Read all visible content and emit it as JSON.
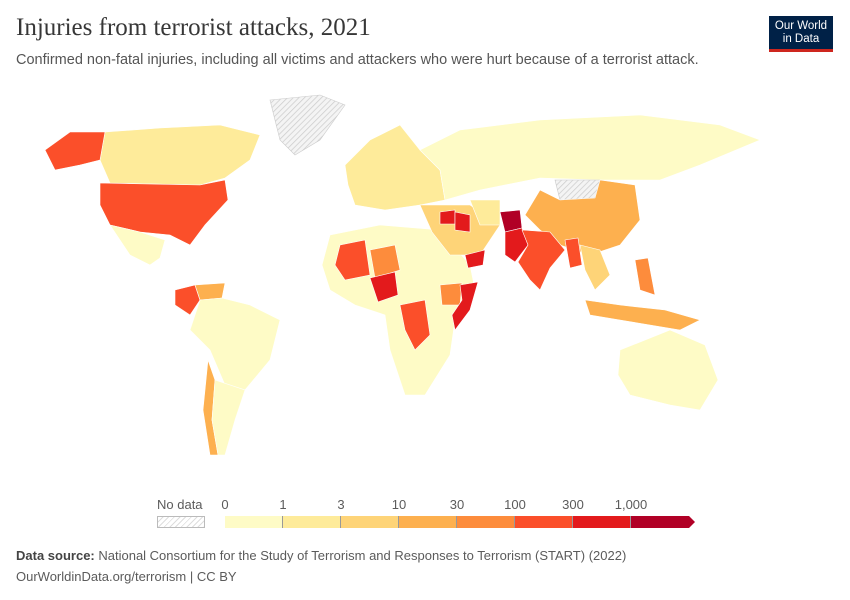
{
  "header": {
    "title": "Injuries from terrorist attacks, 2021",
    "subtitle": "Confirmed non-fatal injuries, including all victims and attackers who were hurt because of a terrorist attack.",
    "logo_text": "Our World in Data"
  },
  "legend": {
    "no_data_label": "No data",
    "ticks": [
      "0",
      "1",
      "3",
      "10",
      "30",
      "100",
      "300",
      "1,000"
    ],
    "colors": [
      "#fefbc6",
      "#feeb9a",
      "#fed478",
      "#fdb04f",
      "#fd8c3c",
      "#fb4f2a",
      "#e31a1c",
      "#b10026"
    ],
    "no_data_color": "#e8e8e8"
  },
  "chart_data": {
    "type": "choropleth",
    "title": "Injuries from terrorist attacks, 2021",
    "scale_bins": [
      "0",
      "1",
      "3",
      "10",
      "30",
      "100",
      "300",
      "1,000"
    ],
    "regions": [
      {
        "name": "United States",
        "bin": "100-300"
      },
      {
        "name": "Alaska (US)",
        "bin": "100-300"
      },
      {
        "name": "Canada",
        "bin": "1-3"
      },
      {
        "name": "Greenland",
        "bin": "no data"
      },
      {
        "name": "Mexico",
        "bin": "0-1"
      },
      {
        "name": "Colombia",
        "bin": "100-300"
      },
      {
        "name": "Venezuela",
        "bin": "10-30"
      },
      {
        "name": "Brazil",
        "bin": "0-1"
      },
      {
        "name": "Chile",
        "bin": "10-30"
      },
      {
        "name": "Argentina",
        "bin": "0-1"
      },
      {
        "name": "Russia",
        "bin": "0-1"
      },
      {
        "name": "Europe",
        "bin": "1-3"
      },
      {
        "name": "China",
        "bin": "10-30"
      },
      {
        "name": "Mongolia",
        "bin": "no data"
      },
      {
        "name": "India",
        "bin": "100-300"
      },
      {
        "name": "Pakistan",
        "bin": "300-1000"
      },
      {
        "name": "Afghanistan",
        "bin": "1000+"
      },
      {
        "name": "Iraq",
        "bin": "300-1000"
      },
      {
        "name": "Syria",
        "bin": "300-1000"
      },
      {
        "name": "Yemen",
        "bin": "300-1000"
      },
      {
        "name": "Somalia",
        "bin": "300-1000"
      },
      {
        "name": "Nigeria",
        "bin": "300-1000"
      },
      {
        "name": "Mali",
        "bin": "100-300"
      },
      {
        "name": "Niger",
        "bin": "30-100"
      },
      {
        "name": "DR Congo",
        "bin": "100-300"
      },
      {
        "name": "Ethiopia",
        "bin": "30-100"
      },
      {
        "name": "Myanmar",
        "bin": "100-300"
      },
      {
        "name": "Philippines",
        "bin": "30-100"
      },
      {
        "name": "Indonesia",
        "bin": "10-30"
      },
      {
        "name": "Australia",
        "bin": "0-1"
      }
    ]
  },
  "footer": {
    "source_label": "Data source:",
    "source_text": " National Consortium for the Study of Terrorism and Responses to Terrorism (START) (2022)",
    "url": "OurWorldinData.org/terrorism | CC BY"
  }
}
